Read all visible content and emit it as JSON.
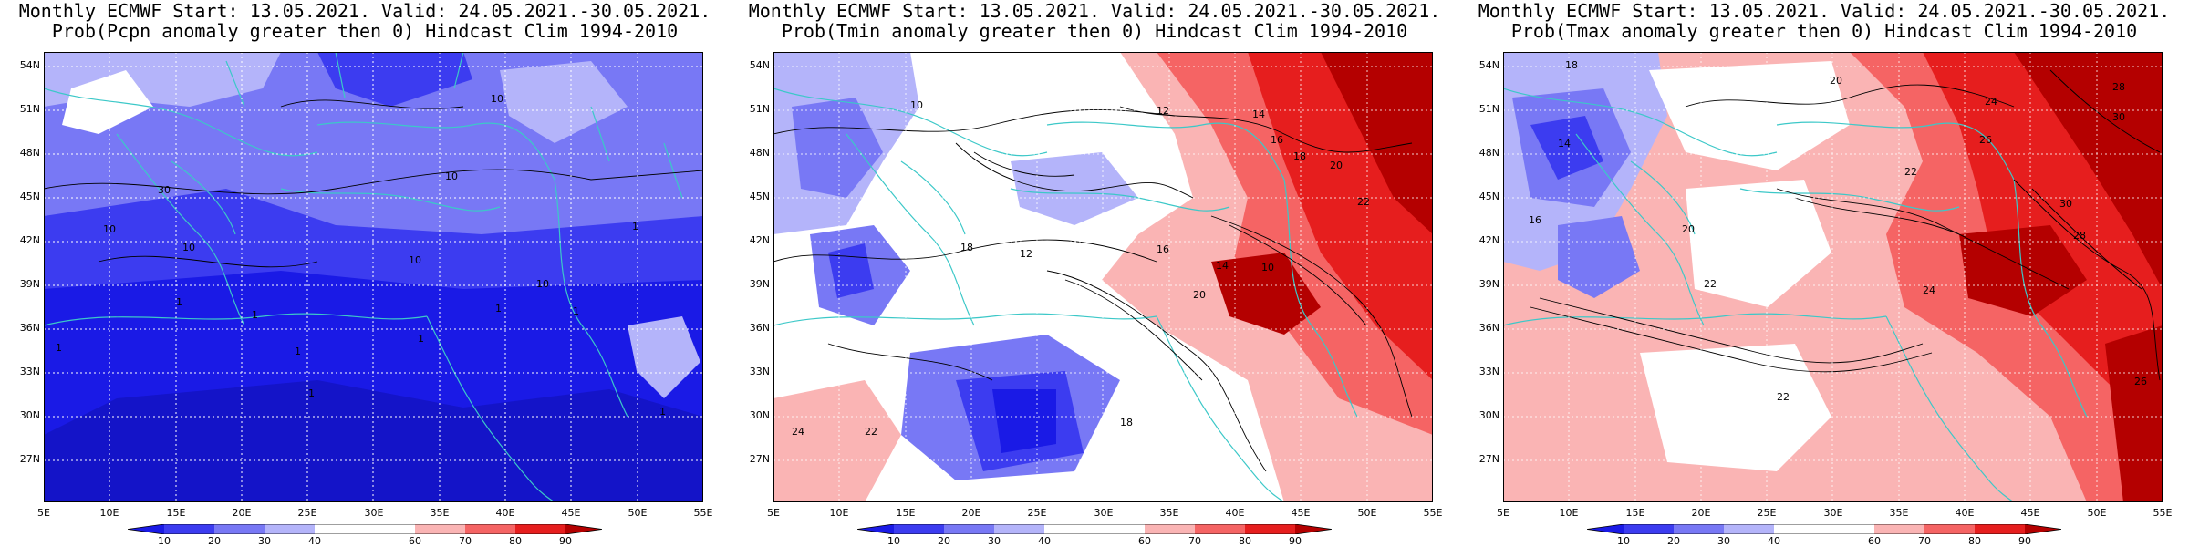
{
  "panels": [
    {
      "title_line1": "Monthly ECMWF Start: 13.05.2021. Valid: 24.05.2021.-30.05.2021.",
      "title_line2": "Prob(Pcpn anomaly greater then 0) Hindcast Clim 1994-2010",
      "contour_labels": [
        "10",
        "10",
        "10",
        "10",
        "10",
        "10",
        "30",
        "1",
        "1",
        "1",
        "1",
        "1",
        "1",
        "1",
        "1",
        "1",
        "1"
      ]
    },
    {
      "title_line1": "Monthly ECMWF Start: 13.05.2021. Valid: 24.05.2021.-30.05.2021.",
      "title_line2": "Prob(Tmin anomaly greater then 0) Hindcast Clim 1994-2010",
      "contour_labels": [
        "10",
        "12",
        "14",
        "16",
        "18",
        "20",
        "22",
        "24",
        "18",
        "16",
        "14",
        "12",
        "10",
        "20",
        "18",
        "22"
      ]
    },
    {
      "title_line1": "Monthly ECMWF Start: 13.05.2021. Valid: 24.05.2021.-30.05.2021.",
      "title_line2": "Prob(Tmax anomaly greater then 0) Hindcast Clim 1994-2010",
      "contour_labels": [
        "18",
        "20",
        "22",
        "24",
        "26",
        "28",
        "30",
        "16",
        "14",
        "24",
        "22",
        "20",
        "30",
        "28",
        "26",
        "22"
      ]
    }
  ],
  "lat_ticks": [
    "54N",
    "51N",
    "48N",
    "45N",
    "42N",
    "39N",
    "36N",
    "33N",
    "30N",
    "27N"
  ],
  "lon_ticks": [
    "5E",
    "10E",
    "15E",
    "20E",
    "25E",
    "30E",
    "35E",
    "40E",
    "45E",
    "50E",
    "55E"
  ],
  "colorbar_ticks": [
    "10",
    "20",
    "30",
    "40",
    "60",
    "70",
    "80",
    "90"
  ],
  "colorbar_colors": [
    "#1a1ae6",
    "#3c3cf0",
    "#7878f5",
    "#b4b4fa",
    "#ffffff",
    "#fab4b4",
    "#f56464",
    "#e61e1e",
    "#b40000"
  ],
  "coastline_color": "#3cc8c8"
}
